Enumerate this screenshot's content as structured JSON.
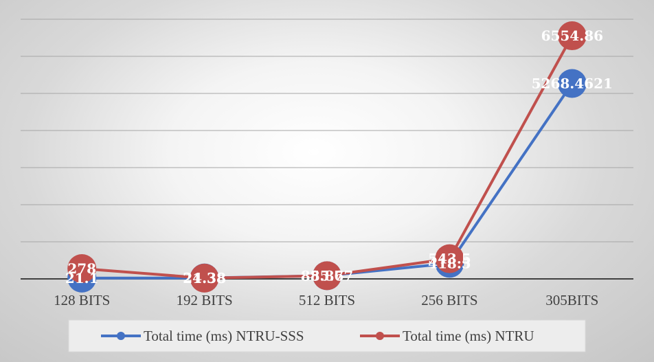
{
  "chart_data": {
    "type": "line",
    "categories": [
      "128 BITS",
      "192 BITS",
      "512 BITS",
      "256 BITS",
      "305BITS"
    ],
    "series": [
      {
        "name": "Total time (ms)  NTRU-SSS",
        "color": "#4472C4",
        "values": [
          21.1,
          24.38,
          85.877,
          418.5,
          5268.4621
        ],
        "labels": [
          "21.1",
          "24.38",
          "85.877",
          "418.5",
          "5268.4621"
        ]
      },
      {
        "name": "Total time (ms)  NTRU",
        "color": "#C0504D",
        "values": [
          278,
          21.38,
          85.6,
          543.5,
          6554.86
        ],
        "labels": [
          "278",
          "21.38",
          "85.6",
          "543.5",
          "6554.86"
        ]
      }
    ],
    "ylim": [
      0,
      7000
    ],
    "grid": true,
    "legend": "bottom"
  }
}
